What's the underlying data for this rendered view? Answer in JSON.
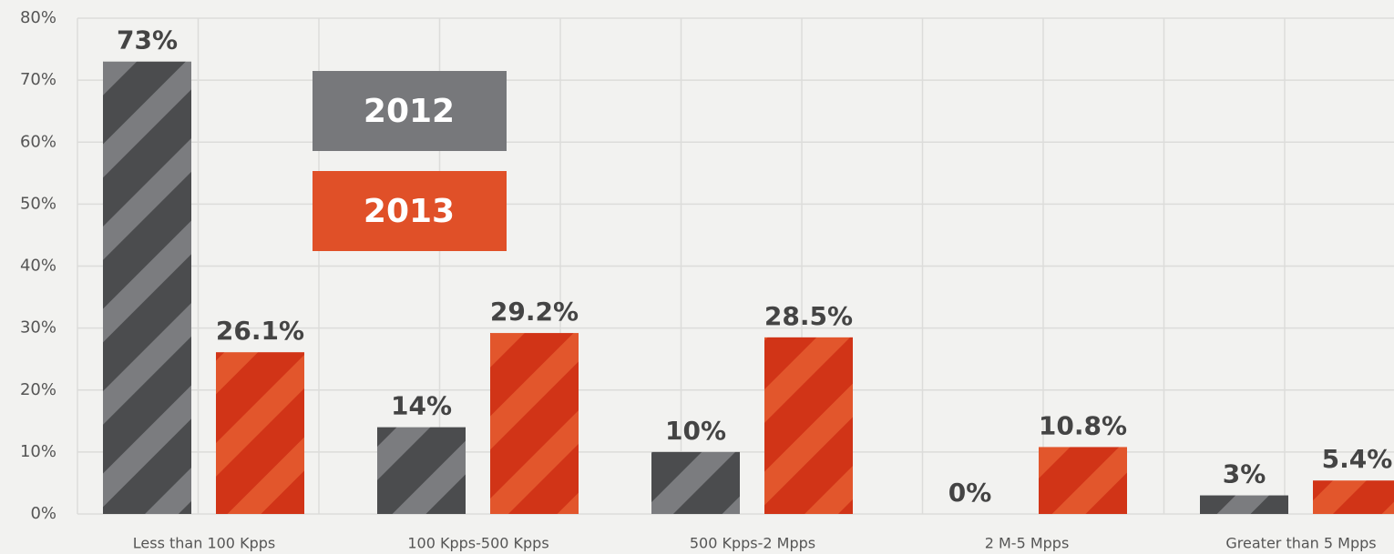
{
  "chart_data": {
    "type": "bar",
    "categories": [
      "Less than 100 Kpps",
      "100 Kpps-500 Kpps",
      "500 Kpps-2 Mpps",
      "2 M-5 Mpps",
      "Greater than 5 Mpps"
    ],
    "series": [
      {
        "name": "2012",
        "color": "#4b4c4e",
        "values": [
          73,
          14,
          10,
          0,
          3
        ],
        "value_labels": [
          "73%",
          "14%",
          "10%",
          "0%",
          "3%"
        ]
      },
      {
        "name": "2013",
        "color": "#d13417",
        "values": [
          26.1,
          29.2,
          28.5,
          10.8,
          5.4
        ],
        "value_labels": [
          "26.1%",
          "29.2%",
          "28.5%",
          "10.8%",
          "5.4%"
        ]
      }
    ],
    "ylim": [
      0,
      80
    ],
    "yticks": [
      {
        "value": 0,
        "label": "0%"
      },
      {
        "value": 10,
        "label": "10%"
      },
      {
        "value": 20,
        "label": "20%"
      },
      {
        "value": 30,
        "label": "30%"
      },
      {
        "value": 40,
        "label": "40%"
      },
      {
        "value": 50,
        "label": "50%"
      },
      {
        "value": 60,
        "label": "60%"
      },
      {
        "value": 70,
        "label": "70%"
      },
      {
        "value": 80,
        "label": "80%"
      }
    ],
    "grid": true
  }
}
